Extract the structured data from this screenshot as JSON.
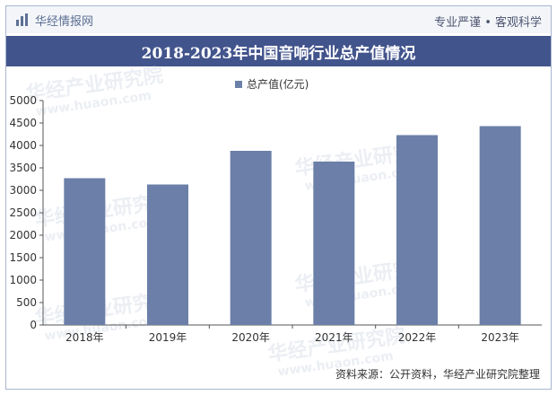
{
  "header": {
    "brand": "华经情报网",
    "tagline": "专业严谨 • 客观科学"
  },
  "colors": {
    "bar": "#6b7fa8",
    "title_bg": "#42548c"
  },
  "icons": {
    "brand_logo": "chart-bars-icon"
  },
  "chart_data": {
    "type": "bar",
    "title": "2018-2023年中国音响行业总产值情况",
    "categories": [
      "2018年",
      "2019年",
      "2020年",
      "2021年",
      "2022年",
      "2023年"
    ],
    "series": [
      {
        "name": "总产值(亿元)",
        "values": [
          3270,
          3130,
          3880,
          3640,
          4230,
          4430
        ]
      }
    ],
    "yticks": [
      0,
      500,
      1000,
      1500,
      2000,
      2500,
      3000,
      3500,
      4000,
      4500,
      5000
    ],
    "ylim": [
      0,
      5000
    ],
    "grid": false,
    "legend_position": "top-center"
  },
  "watermark": {
    "text": "华经产业研究院",
    "url": "www.huaon.com"
  },
  "footer": {
    "source": "资料来源：公开资料，华经产业研究院整理"
  }
}
